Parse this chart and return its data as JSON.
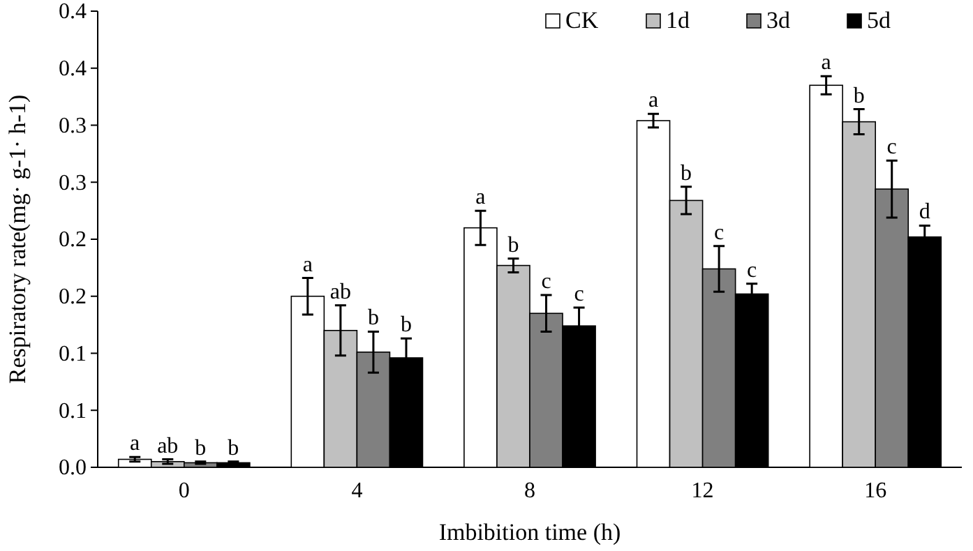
{
  "chart_data": {
    "type": "bar",
    "xlabel": "Imbibition time (h)",
    "ylabel": "Respiratory rate(mg· g-1· h-1)",
    "categories": [
      "0",
      "4",
      "8",
      "12",
      "16"
    ],
    "ylim": [
      0,
      0.4
    ],
    "yticks": [
      {
        "value": 0,
        "label": "0.0"
      },
      {
        "value": 0.05,
        "label": "0.1"
      },
      {
        "value": 0.1,
        "label": "0.1"
      },
      {
        "value": 0.15,
        "label": "0.2"
      },
      {
        "value": 0.2,
        "label": "0.2"
      },
      {
        "value": 0.25,
        "label": "0.3"
      },
      {
        "value": 0.3,
        "label": "0.3"
      },
      {
        "value": 0.35,
        "label": "0.4"
      },
      {
        "value": 0.4,
        "label": "0.4"
      }
    ],
    "legend": "top right",
    "series": [
      {
        "name": "CK",
        "color": "#ffffff",
        "values": [
          0.007,
          0.15,
          0.21,
          0.304,
          0.335
        ],
        "errors": [
          0.002,
          0.016,
          0.015,
          0.006,
          0.008
        ],
        "value_labels": [
          "a",
          "a",
          "a",
          "a",
          "a"
        ]
      },
      {
        "name": "1d",
        "color": "#c0c0c0",
        "values": [
          0.005,
          0.12,
          0.177,
          0.234,
          0.303
        ],
        "errors": [
          0.002,
          0.022,
          0.006,
          0.012,
          0.011
        ],
        "value_labels": [
          "ab",
          "ab",
          "b",
          "b",
          "b"
        ]
      },
      {
        "name": "3d",
        "color": "#808080",
        "values": [
          0.004,
          0.101,
          0.135,
          0.174,
          0.244
        ],
        "errors": [
          0.001,
          0.018,
          0.016,
          0.02,
          0.025
        ],
        "value_labels": [
          "b",
          "b",
          "c",
          "c",
          "c"
        ]
      },
      {
        "name": "5d",
        "color": "#000000",
        "values": [
          0.004,
          0.096,
          0.124,
          0.152,
          0.202
        ],
        "errors": [
          0.001,
          0.017,
          0.016,
          0.009,
          0.01
        ],
        "value_labels": [
          "b",
          "b",
          "c",
          "c",
          "d"
        ]
      }
    ]
  }
}
